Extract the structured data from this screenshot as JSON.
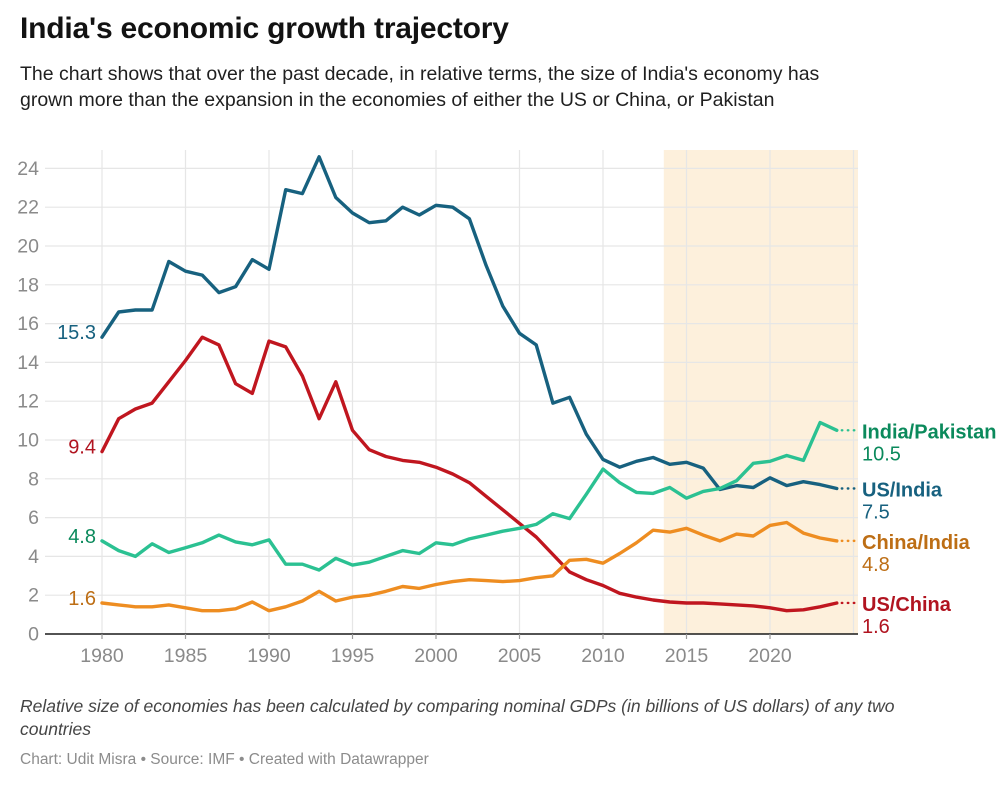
{
  "header": {
    "title": "India's economic growth trajectory",
    "subtitle_line1": "The chart shows that over the past decade, in relative terms, the size of India's economy has",
    "subtitle_line2": "grown more than the expansion in the economies of either the US or China, or Pakistan"
  },
  "footer": {
    "note_line1": "Relative size of economies has been calculated by comparing nominal GDPs (in billions of US dollars) of any two",
    "note_line2": "countries",
    "credit": "Chart: Udit Misra • Source: IMF • Created with Datawrapper"
  },
  "chart_data": {
    "type": "line",
    "title": "India's economic growth trajectory",
    "xlabel": "",
    "ylabel": "",
    "x": [
      1980,
      1981,
      1982,
      1983,
      1984,
      1985,
      1986,
      1987,
      1988,
      1989,
      1990,
      1991,
      1992,
      1993,
      1994,
      1995,
      1996,
      1997,
      1998,
      1999,
      2000,
      2001,
      2002,
      2003,
      2004,
      2005,
      2006,
      2007,
      2008,
      2009,
      2010,
      2011,
      2012,
      2013,
      2014,
      2015,
      2016,
      2017,
      2018,
      2019,
      2020,
      2021,
      2022,
      2023,
      2024
    ],
    "series": [
      {
        "name": "US/China",
        "start_label": "9.4",
        "end_label": "1.6",
        "color": "#c0161f",
        "label_color": "#b11420",
        "values": [
          9.4,
          11.1,
          11.6,
          11.9,
          13.0,
          14.1,
          15.3,
          14.9,
          12.9,
          12.4,
          15.1,
          14.8,
          13.3,
          11.1,
          13.0,
          10.5,
          9.5,
          9.15,
          8.95,
          8.85,
          8.6,
          8.25,
          7.8,
          7.1,
          6.4,
          5.7,
          5.0,
          4.1,
          3.2,
          2.8,
          2.5,
          2.1,
          1.9,
          1.75,
          1.65,
          1.6,
          1.6,
          1.55,
          1.5,
          1.45,
          1.35,
          1.2,
          1.25,
          1.4,
          1.6
        ]
      },
      {
        "name": "China/India",
        "start_label": "1.6",
        "end_label": "4.8",
        "color": "#ee8d21",
        "label_color": "#bd6e15",
        "values": [
          1.6,
          1.5,
          1.4,
          1.4,
          1.5,
          1.35,
          1.2,
          1.2,
          1.3,
          1.65,
          1.2,
          1.4,
          1.7,
          2.2,
          1.7,
          1.9,
          2.0,
          2.2,
          2.45,
          2.35,
          2.55,
          2.7,
          2.8,
          2.75,
          2.7,
          2.75,
          2.9,
          3.0,
          3.8,
          3.85,
          3.65,
          4.15,
          4.7,
          5.35,
          5.25,
          5.45,
          5.1,
          4.8,
          5.15,
          5.05,
          5.6,
          5.75,
          5.2,
          4.95,
          4.8
        ]
      },
      {
        "name": "US/India",
        "start_label": "15.3",
        "end_label": "7.5",
        "color": "#17617f",
        "label_color": "#17617f",
        "values": [
          15.3,
          16.6,
          16.7,
          16.7,
          19.2,
          18.7,
          18.5,
          17.6,
          17.9,
          19.3,
          18.8,
          22.9,
          22.7,
          24.6,
          22.5,
          21.7,
          21.2,
          21.3,
          22.0,
          21.6,
          22.1,
          22.0,
          21.4,
          19.0,
          16.9,
          15.5,
          14.9,
          11.9,
          12.2,
          10.3,
          9.0,
          8.6,
          8.9,
          9.1,
          8.75,
          8.85,
          8.55,
          7.45,
          7.65,
          7.55,
          8.05,
          7.65,
          7.85,
          7.7,
          7.5
        ]
      },
      {
        "name": "India/Pakistan",
        "start_label": "4.8",
        "end_label": "10.5",
        "color": "#2bc192",
        "label_color": "#0b8a5c",
        "values": [
          4.8,
          4.3,
          4.0,
          4.65,
          4.2,
          4.45,
          4.7,
          5.1,
          4.75,
          4.6,
          4.85,
          3.6,
          3.6,
          3.3,
          3.9,
          3.55,
          3.7,
          4.0,
          4.3,
          4.15,
          4.7,
          4.6,
          4.9,
          5.1,
          5.3,
          5.45,
          5.65,
          6.2,
          5.95,
          7.2,
          8.5,
          7.8,
          7.3,
          7.25,
          7.55,
          7.0,
          7.35,
          7.5,
          7.9,
          8.8,
          8.9,
          9.2,
          8.95,
          10.9,
          10.5
        ]
      }
    ],
    "yticks": [
      0,
      2,
      4,
      6,
      8,
      10,
      12,
      14,
      16,
      18,
      20,
      22,
      24
    ],
    "xticks": [
      1980,
      1985,
      1990,
      1995,
      2000,
      2005,
      2010,
      2015,
      2020
    ],
    "xgridlines": [
      1980,
      1985,
      1990,
      1995,
      2000,
      2005,
      2010,
      2015,
      2020,
      2025
    ],
    "ylim": [
      0,
      25
    ],
    "xlim": [
      1980,
      2025
    ],
    "grid": true,
    "legend_position": "right-edge direct labels",
    "highlight_range": [
      2014,
      2025
    ],
    "colors": {
      "grid": "#e6e6e6",
      "axis": "#1a1a1a",
      "tick": "#9a9a9a",
      "tick_text": "#8a8a8a",
      "highlight_band": "#fdf0dc"
    }
  }
}
